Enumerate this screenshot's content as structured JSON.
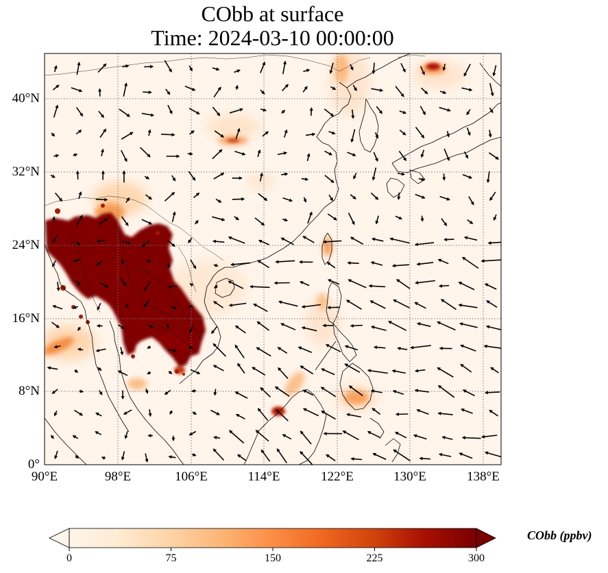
{
  "title": {
    "line1": "CObb at surface",
    "line2": "Time: 2024-03-10 00:00:00"
  },
  "map": {
    "lon_range": [
      90,
      140
    ],
    "lat_range": [
      0,
      45
    ],
    "lat_ticks": [
      {
        "value": 0,
        "label": "0°"
      },
      {
        "value": 8,
        "label": "8°N"
      },
      {
        "value": 16,
        "label": "16°N"
      },
      {
        "value": 24,
        "label": "24°N"
      },
      {
        "value": 32,
        "label": "32°N"
      },
      {
        "value": 40,
        "label": "40°N"
      }
    ],
    "lon_ticks": [
      {
        "value": 90,
        "label": "90°E"
      },
      {
        "value": 98,
        "label": "98°E"
      },
      {
        "value": 106,
        "label": "106°E"
      },
      {
        "value": 114,
        "label": "114°E"
      },
      {
        "value": 122,
        "label": "122°E"
      },
      {
        "value": 130,
        "label": "130°E"
      },
      {
        "value": 138,
        "label": "138°E"
      }
    ],
    "gridlines": "dotted"
  },
  "colorbar": {
    "label": "CObb (ppbv)",
    "min": 0,
    "max": 300,
    "extend": "both",
    "ticks": [
      "0",
      "75",
      "150",
      "225",
      "300"
    ],
    "colormap": [
      "#fff5eb",
      "#fee6ce",
      "#fdd0a2",
      "#fdae6b",
      "#fd8d3c",
      "#f16913",
      "#d94801",
      "#a63603",
      "#7f2704",
      "#7a0000"
    ]
  },
  "colors": {
    "saturated": "#800000",
    "background": "#fff5eb",
    "coastline": "#000000"
  }
}
